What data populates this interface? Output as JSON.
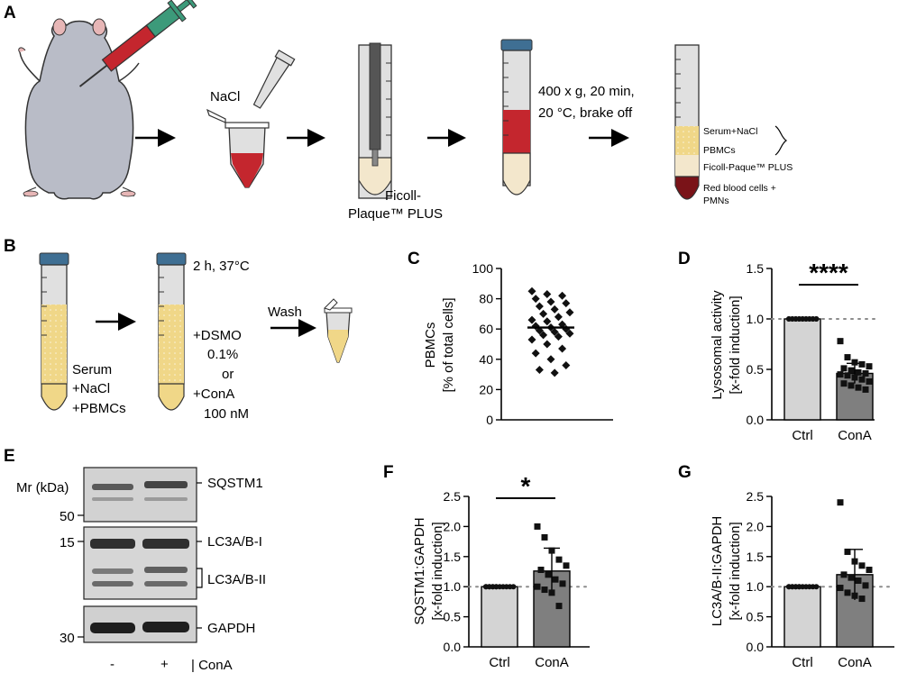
{
  "panels": {
    "a": {
      "letter": "A",
      "nacl": "NaCl",
      "ficoll_1": "Ficoll-",
      "ficoll_2": "Plaque™ PLUS",
      "spin_1": "400 x g, 20 min,",
      "spin_2": "20 °C, brake off",
      "layer_serum": "Serum+NaCl",
      "layer_pbmc": "PBMCs",
      "layer_ficoll": "Ficoll-Paque™ PLUS",
      "layer_rbc_1": "Red blood cells +",
      "layer_rbc_2": "PMNs"
    },
    "b": {
      "letter": "B",
      "tube1_1": "Serum",
      "tube1_2": "+NaCl",
      "tube1_3": "+PBMCs",
      "incubation": "2 h, 37°C",
      "treat_1": "+DSMO",
      "treat_2": "0.1%",
      "treat_3": "or",
      "treat_4": "+ConA",
      "treat_5": "100 nM",
      "wash": "Wash"
    },
    "e": {
      "letter": "E",
      "mr": "Mr (kDa)",
      "mw_50": "50",
      "mw_15": "15",
      "mw_30": "30",
      "sqstm1": "SQSTM1",
      "lc3_i": "LC3A/B-I",
      "lc3_ii": "LC3A/B-II",
      "gapdh": "GAPDH",
      "lane_minus": "-",
      "lane_plus": "+",
      "cona": "| ConA"
    }
  },
  "chart_data": [
    {
      "id": "C",
      "letter": "C",
      "type": "scatter",
      "ylabel_1": "PBMCs",
      "ylabel_2": "[% of total cells]",
      "ylim": [
        0,
        100
      ],
      "yticks": [
        0,
        20,
        40,
        60,
        80,
        100
      ],
      "mean": 61,
      "values": [
        85,
        83,
        82,
        80,
        78,
        77,
        75,
        73,
        71,
        70,
        68,
        66,
        65,
        63,
        62,
        61,
        60,
        59,
        58,
        57,
        56,
        55,
        53,
        50,
        47,
        44,
        40,
        36,
        33,
        31
      ]
    },
    {
      "id": "D",
      "letter": "D",
      "type": "bar",
      "ylabel_1": "Lysosomal activity",
      "ylabel_2": "[x-fold induction]",
      "ylim": [
        0,
        1.5
      ],
      "yticks": [
        "0.0",
        "0.5",
        "1.0",
        "1.5"
      ],
      "yticks_values": [
        0,
        0.5,
        1.0,
        1.5
      ],
      "categories": [
        "Ctrl",
        "ConA"
      ],
      "means": [
        1.0,
        0.46
      ],
      "sd": [
        0,
        0.1
      ],
      "points": [
        [
          1.0,
          1.0,
          1.0,
          1.0,
          1.0,
          1.0,
          1.0,
          1.0,
          1.0,
          1.0,
          1.0,
          1.0,
          1.0,
          1.0,
          1.0,
          1.0,
          1.0,
          1.0
        ],
        [
          0.78,
          0.62,
          0.57,
          0.55,
          0.53,
          0.51,
          0.49,
          0.47,
          0.46,
          0.45,
          0.44,
          0.42,
          0.4,
          0.38,
          0.36,
          0.34,
          0.32,
          0.3
        ]
      ],
      "significance": "****",
      "reference_line": 1.0
    },
    {
      "id": "F",
      "letter": "F",
      "type": "bar",
      "ylabel_1": "SQSTM1:GAPDH",
      "ylabel_2": "[x-fold induction]",
      "ylim": [
        0,
        2.5
      ],
      "yticks": [
        "0.0",
        "0.5",
        "1.0",
        "1.5",
        "2.0",
        "2.5"
      ],
      "yticks_values": [
        0,
        0.5,
        1.0,
        1.5,
        2.0,
        2.5
      ],
      "categories": [
        "Ctrl",
        "ConA"
      ],
      "means": [
        1.0,
        1.26
      ],
      "sd": [
        0,
        0.38
      ],
      "points": [
        [
          1.0,
          1.0,
          1.0,
          1.0,
          1.0,
          1.0,
          1.0,
          1.0,
          1.0,
          1.0,
          1.0,
          1.0,
          1.0
        ],
        [
          2.0,
          1.82,
          1.6,
          1.45,
          1.35,
          1.28,
          1.2,
          1.12,
          1.05,
          1.0,
          0.95,
          0.9,
          0.68
        ]
      ],
      "significance": "*",
      "reference_line": 1.0
    },
    {
      "id": "G",
      "letter": "G",
      "type": "bar",
      "ylabel_1": "LC3A/B-II:GAPDH",
      "ylabel_2": "[x-fold induction]",
      "ylim": [
        0,
        2.5
      ],
      "yticks": [
        "0.0",
        "0.5",
        "1.0",
        "1.5",
        "2.0",
        "2.5"
      ],
      "yticks_values": [
        0,
        0.5,
        1.0,
        1.5,
        2.0,
        2.5
      ],
      "categories": [
        "Ctrl",
        "ConA"
      ],
      "means": [
        1.0,
        1.2
      ],
      "sd": [
        0,
        0.42
      ],
      "points": [
        [
          1.0,
          1.0,
          1.0,
          1.0,
          1.0,
          1.0,
          1.0,
          1.0,
          1.0,
          1.0,
          1.0,
          1.0,
          1.0
        ],
        [
          2.4,
          1.58,
          1.42,
          1.35,
          1.28,
          1.2,
          1.15,
          1.1,
          1.02,
          0.98,
          0.9,
          0.85,
          0.8
        ]
      ],
      "significance": "",
      "reference_line": 1.0
    }
  ],
  "colors": {
    "tube_body": "#e0e0e0",
    "tube_cap": "#3f6f93",
    "blood": "#c4262e",
    "blood_dark": "#7a1318",
    "serum": "#f0d788",
    "ficoll": "#f3e7cc",
    "mouse": "#b9bcc7",
    "syringe": "#3c9a7a",
    "bar_ctrl": "#d4d4d4",
    "bar_cona": "#7f7f7f",
    "ref_line": "#8c8c8c"
  }
}
